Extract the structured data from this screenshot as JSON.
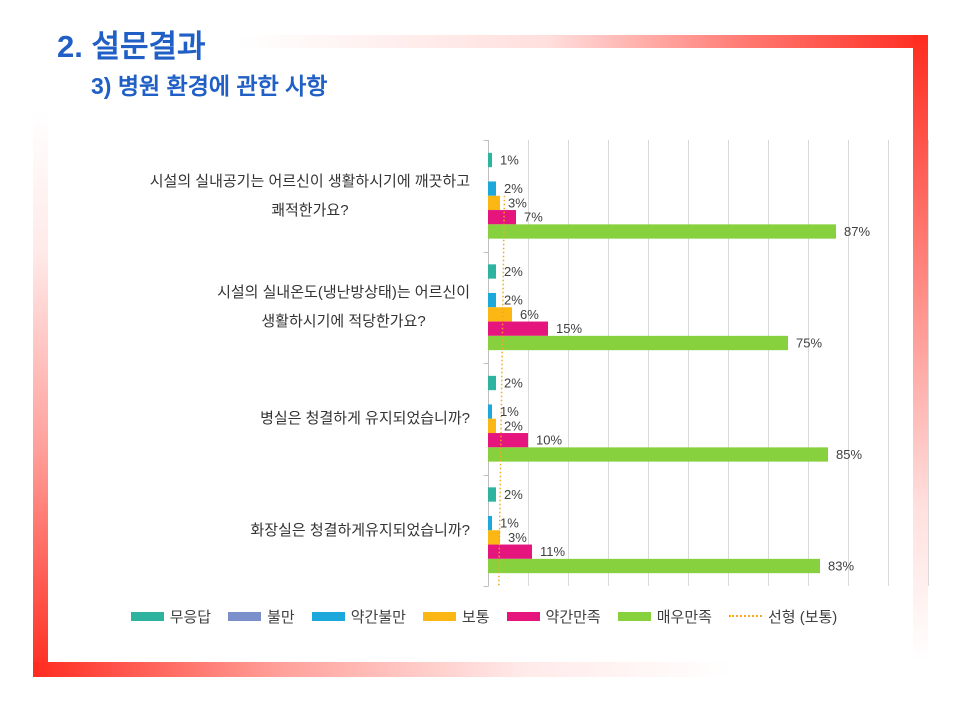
{
  "slide": {
    "title": "2. 설문결과",
    "subtitle": "3) 병원 환경에 관한 사항"
  },
  "colors": {
    "title": "#1F5FC6",
    "frame": "#FF2B1F",
    "category_text": "#333333",
    "label_text": "#404040",
    "gridline": "#D9D9D9",
    "axis": "#BFBFBF"
  },
  "chart_data": {
    "type": "bar",
    "orientation": "horizontal",
    "categories": [
      "시설의 실내공기는 어르신이 생활하시기에 깨끗하고\n쾌적한가요?",
      "시설의 실내온도(냉난방상태)는 어르신이\n생활하시기에 적당한가요?",
      "병실은 청결하게 유지되었습니까?",
      "화장실은 청결하게유지되었습니까?"
    ],
    "series": [
      {
        "name": "무응답",
        "color": "#2DB39E",
        "values": [
          1,
          2,
          2,
          2
        ]
      },
      {
        "name": "불만",
        "color": "#7B8FCB",
        "values": [
          null,
          null,
          null,
          null
        ]
      },
      {
        "name": "약간불만",
        "color": "#1DA8DC",
        "values": [
          2,
          2,
          1,
          1
        ]
      },
      {
        "name": "보통",
        "color": "#FDB714",
        "values": [
          3,
          6,
          2,
          3
        ]
      },
      {
        "name": "약간만족",
        "color": "#E5157D",
        "values": [
          7,
          15,
          10,
          11
        ]
      },
      {
        "name": "매우만족",
        "color": "#88D13E",
        "values": [
          87,
          75,
          85,
          83
        ]
      }
    ],
    "unit": "%",
    "xlim": [
      0,
      110
    ],
    "major_unit": 10,
    "grid": true,
    "data_labels": true,
    "trendline": {
      "name": "선형 (보통)",
      "series": "보통",
      "fit": "linear",
      "color": "#F4A71A",
      "style": "dotted"
    },
    "legend": "bottom"
  }
}
